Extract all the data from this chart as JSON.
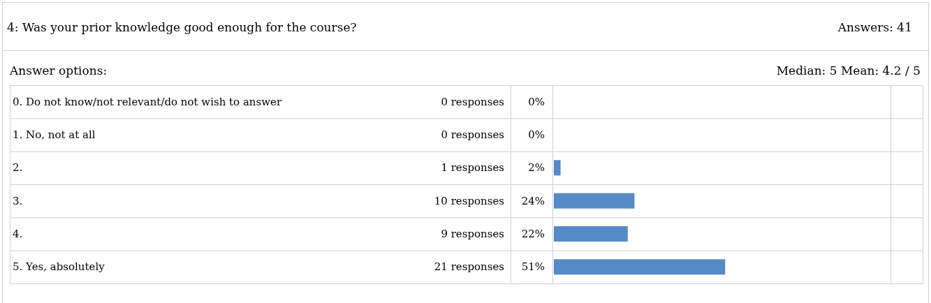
{
  "chart_data": {
    "type": "bar",
    "orientation": "horizontal",
    "title": "4: Was your prior knowledge good enough for the course?",
    "subtitle": "Answer options:",
    "categories": [
      "0. Do not know/not relevant/do not wish to answer",
      "1. No, not at all",
      "2.",
      "3.",
      "4.",
      "5. Yes, absolutely"
    ],
    "values": [
      0,
      0,
      2,
      24,
      22,
      51
    ],
    "value_labels": [
      "0%",
      "0%",
      "2%",
      "24%",
      "22%",
      "51%"
    ],
    "color": "#568ac6",
    "xlim": [
      0,
      100
    ],
    "tick_labels": false,
    "annotations": [
      "Answers:  41",
      "Median: 5 Mean: 4.2 / 5",
      "0 responses",
      "0 responses",
      "1 responses",
      "10 responses",
      "9 responses",
      "21 responses"
    ]
  }
}
